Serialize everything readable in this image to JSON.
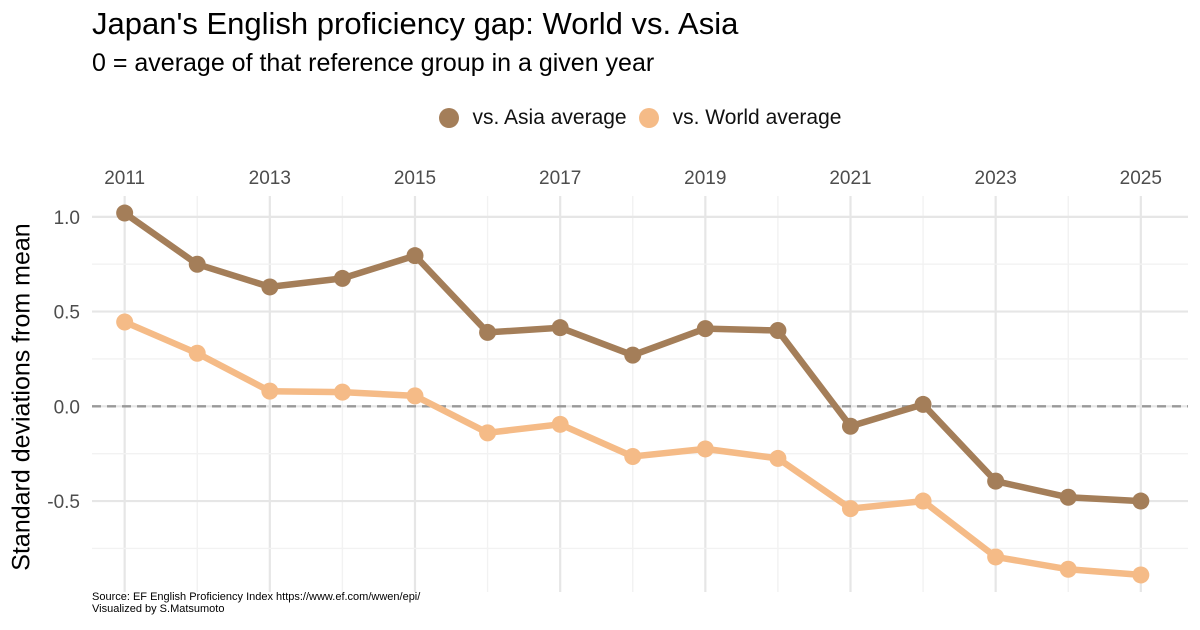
{
  "chart_data": {
    "type": "line",
    "title": "Japan's English proficiency gap: World vs. Asia",
    "subtitle": "0 = average of that reference group in a given year",
    "ylabel": "Standard deviations from mean",
    "xlabel": "",
    "x": [
      2011,
      2012,
      2013,
      2014,
      2015,
      2016,
      2017,
      2018,
      2019,
      2020,
      2021,
      2022,
      2023,
      2024,
      2025
    ],
    "x_tick_labels": [
      "2011",
      "2013",
      "2015",
      "2017",
      "2019",
      "2021",
      "2023",
      "2025"
    ],
    "x_axis_position": "top",
    "y_tick_labels": [
      "1.0",
      "0.5",
      "0.0",
      "-0.5"
    ],
    "ylim": [
      -0.98,
      1.11
    ],
    "xlim": [
      2010.55,
      2025.65
    ],
    "reference_line": {
      "y": 0,
      "style": "dashed",
      "color": "#999999"
    },
    "grid": true,
    "legend_position": "top",
    "series": [
      {
        "name": "vs. Asia average",
        "color": "#a47e59",
        "values": [
          1.02,
          0.75,
          0.63,
          0.675,
          0.795,
          0.39,
          0.415,
          0.27,
          0.41,
          0.4,
          -0.105,
          0.01,
          -0.395,
          -0.48,
          -0.5
        ]
      },
      {
        "name": "vs. World average",
        "color": "#f5bb87",
        "values": [
          0.445,
          0.28,
          0.08,
          0.075,
          0.055,
          -0.14,
          -0.095,
          -0.265,
          -0.225,
          -0.275,
          -0.54,
          -0.5,
          -0.795,
          -0.86,
          -0.89
        ]
      }
    ]
  },
  "source": {
    "line1": "Source: EF English Proficiency Index https://www.ef.com/wwen/epi/",
    "line2": "Visualized by S.Matsumoto"
  }
}
